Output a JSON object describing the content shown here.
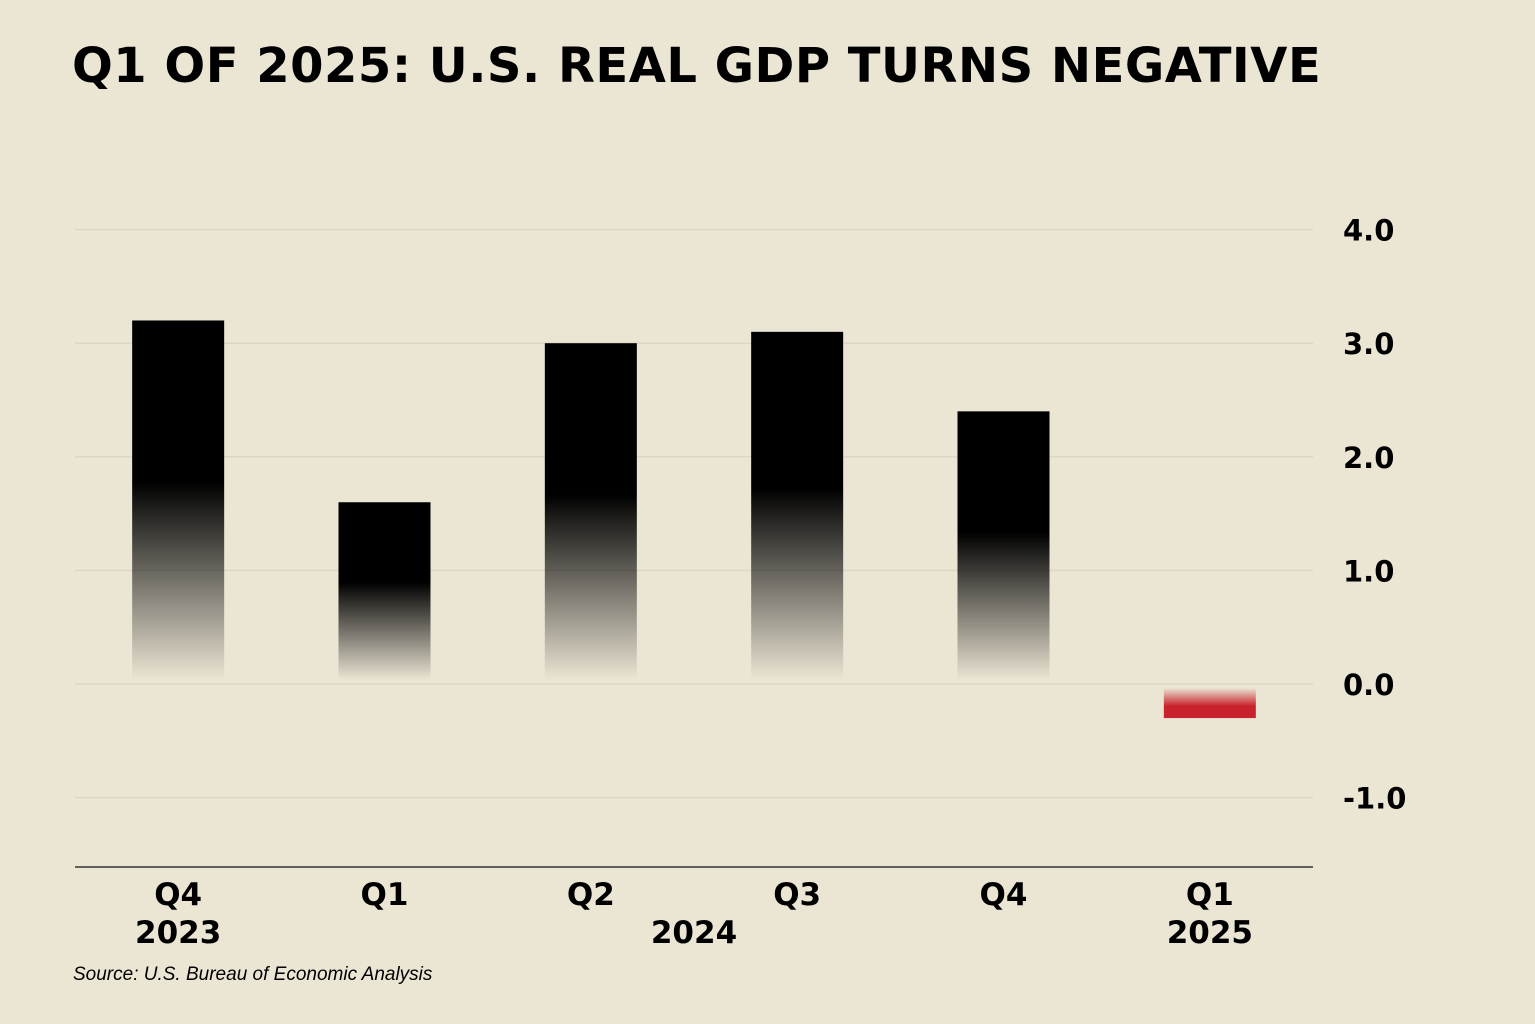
{
  "title": "Q1 OF 2025: U.S. REAL GDP TURNS NEGATIVE",
  "source": "Source: U.S. Bureau of Economic Analysis",
  "colors": {
    "background": "#ebe5d4",
    "positive_bar": "#000000",
    "negative_bar": "#c8232c",
    "gridline": "#ddd6c4",
    "baseline": "#333333"
  },
  "chart_data": {
    "type": "bar",
    "title": "Q1 OF 2025: U.S. REAL GDP TURNS NEGATIVE",
    "categories": [
      "Q4",
      "Q1",
      "Q2",
      "Q3",
      "Q4",
      "Q1"
    ],
    "years": [
      {
        "label": "2023",
        "span": [
          0,
          0
        ]
      },
      {
        "label": "2024",
        "span": [
          1,
          4
        ]
      },
      {
        "label": "2025",
        "span": [
          5,
          5
        ]
      }
    ],
    "values": [
      3.2,
      1.6,
      3.0,
      3.1,
      2.4,
      -0.3
    ],
    "yticks": [
      4.0,
      3.0,
      2.0,
      1.0,
      0.0,
      -1.0
    ],
    "ytick_labels": [
      "4.0",
      "3.0",
      "2.0",
      "1.0",
      "0.0",
      "-1.0"
    ],
    "ylim": [
      -1.6,
      4.0
    ],
    "y_axis_side": "right",
    "grid": true,
    "xlabel": "",
    "ylabel": ""
  }
}
